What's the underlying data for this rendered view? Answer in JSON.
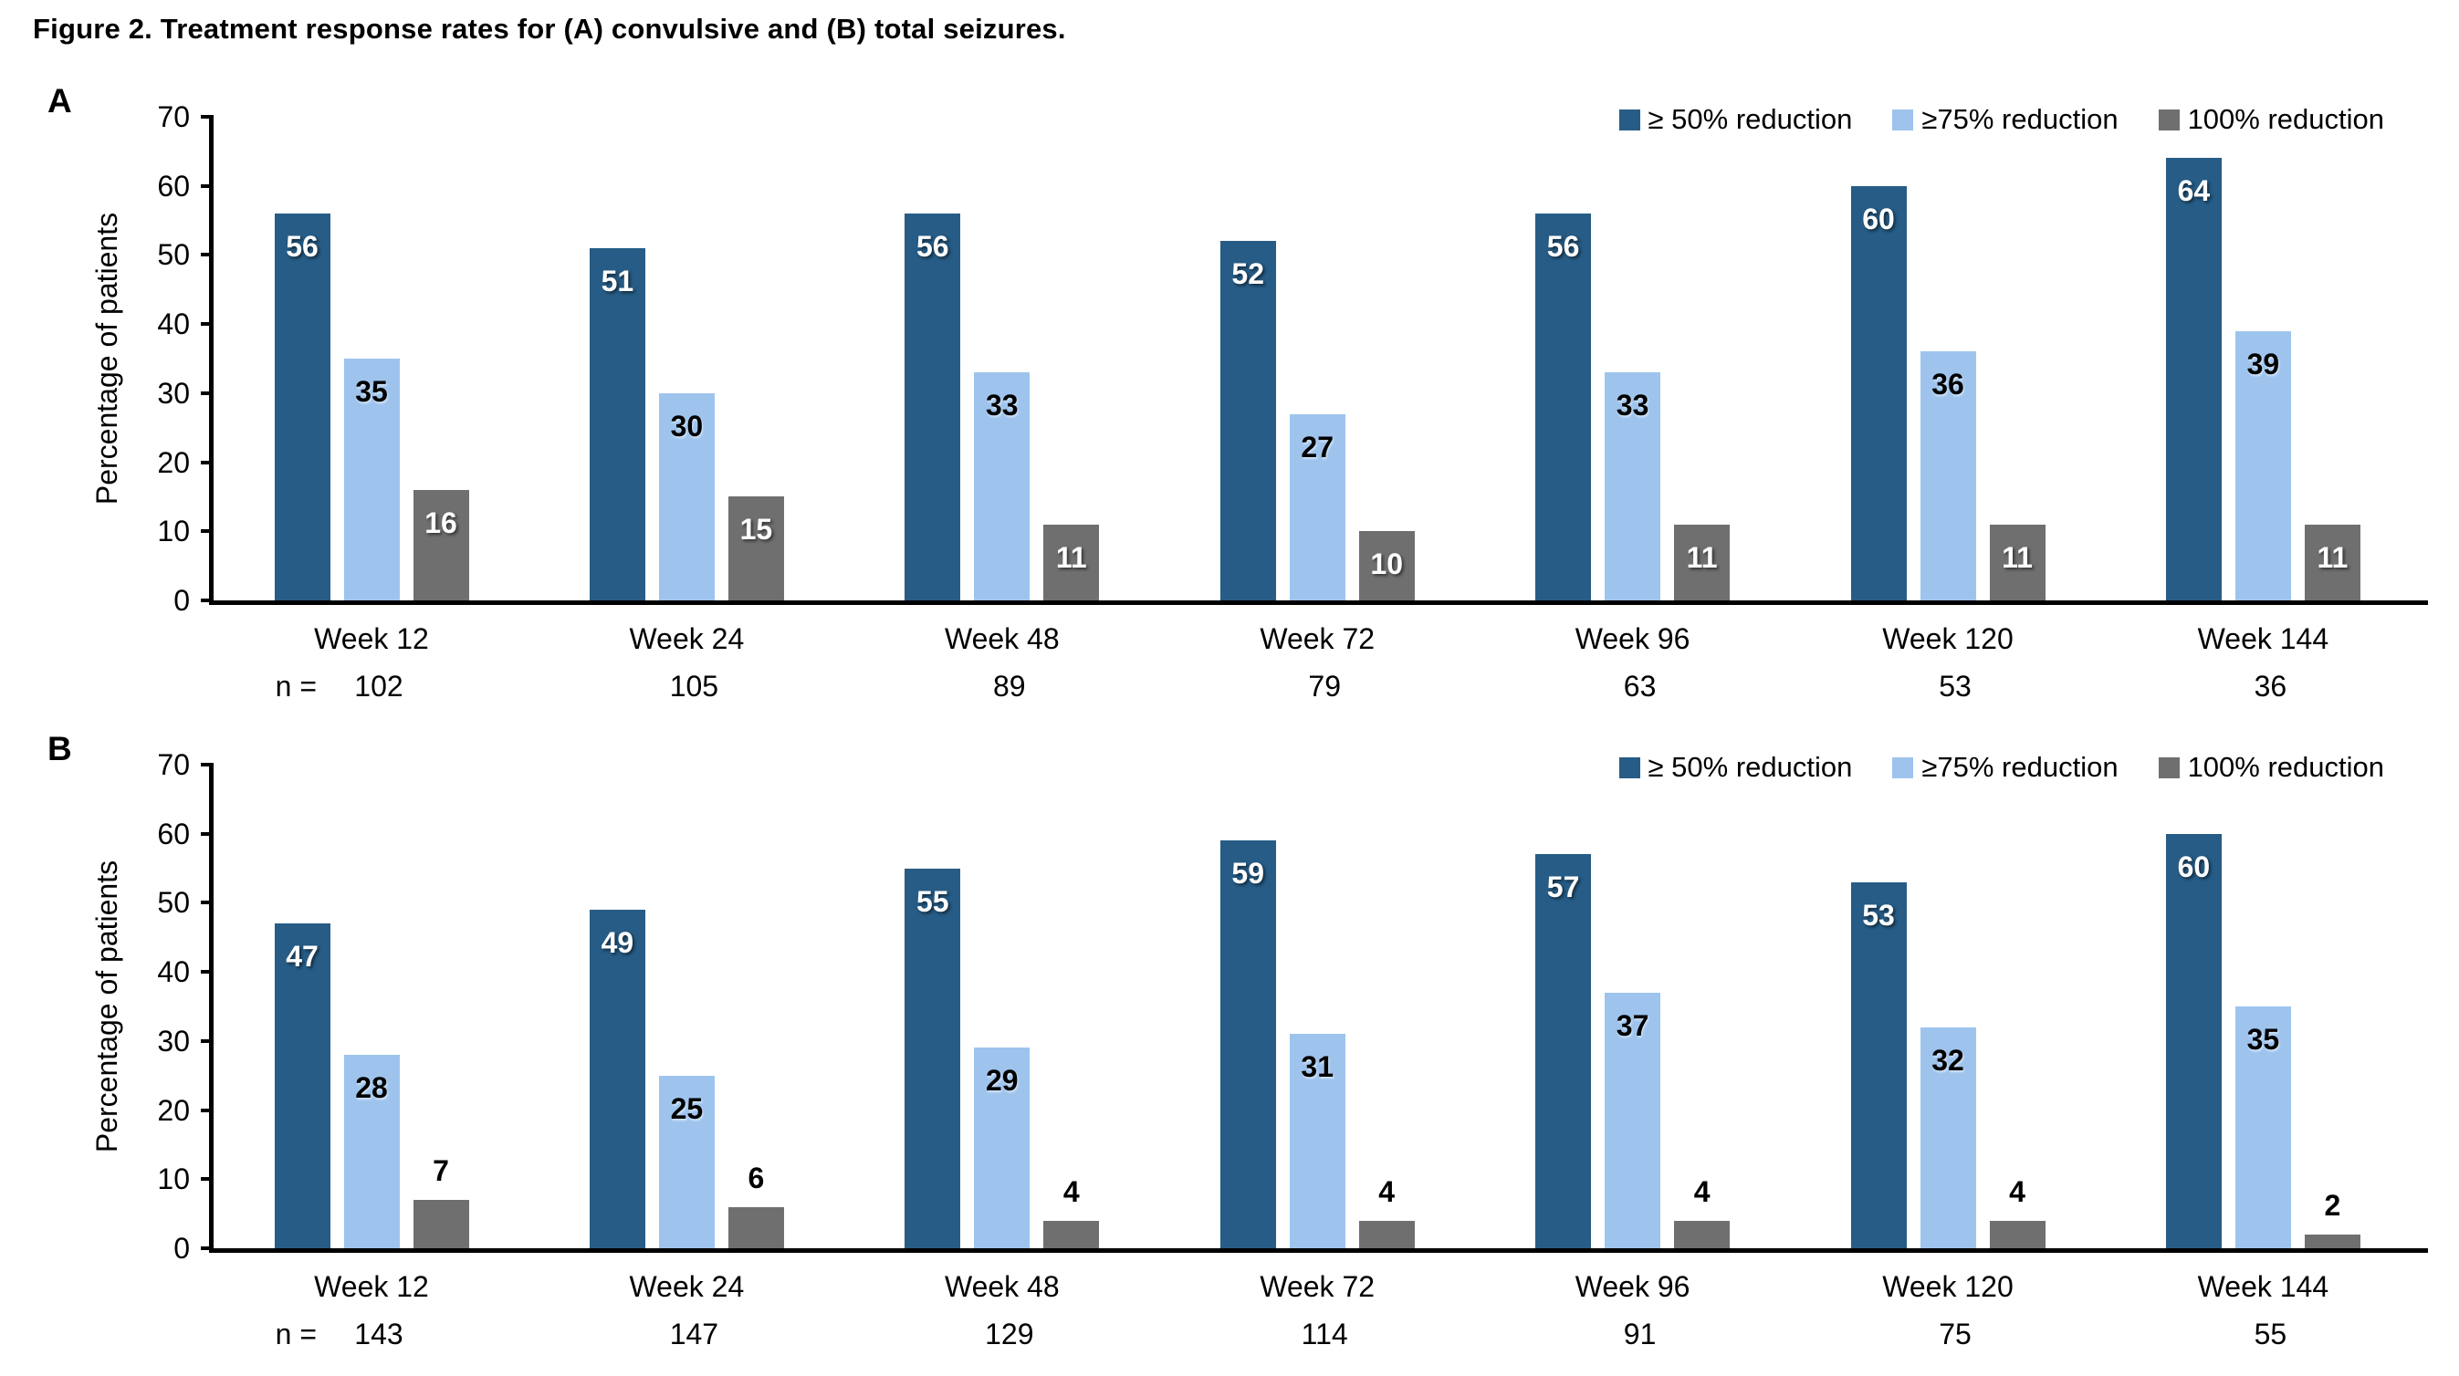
{
  "figure": {
    "title": "Figure 2. Treatment response rates for (A) convulsive and (B) total seizures."
  },
  "colors": {
    "dark_blue": "#265C86",
    "light_blue": "#9EC4EE",
    "gray": "#6F6F6F",
    "axis": "#000000",
    "background": "#FFFFFF"
  },
  "chart_data": [
    {
      "type": "bar",
      "panel": "A",
      "title": "Treatment response rates for convulsive seizures",
      "ylabel": "Percentage of patients",
      "xlabel": "",
      "ylim": [
        0,
        70
      ],
      "yticks": [
        0,
        10,
        20,
        30,
        40,
        50,
        60,
        70
      ],
      "grid": false,
      "legend_position": "top-right",
      "categories": [
        "Week 12",
        "Week 24",
        "Week 48",
        "Week 72",
        "Week 96",
        "Week 120",
        "Week 144"
      ],
      "n_label": "n =",
      "n_values": [
        102,
        105,
        89,
        79,
        63,
        53,
        36
      ],
      "series": [
        {
          "name": "≥ 50% reduction",
          "color": "#265C86",
          "values": [
            56,
            51,
            56,
            52,
            56,
            60,
            64
          ]
        },
        {
          "name": "≥75% reduction",
          "color": "#9EC4EE",
          "values": [
            35,
            30,
            33,
            27,
            33,
            36,
            39
          ]
        },
        {
          "name": "100% reduction",
          "color": "#6F6F6F",
          "values": [
            16,
            15,
            11,
            10,
            11,
            11,
            11
          ]
        }
      ]
    },
    {
      "type": "bar",
      "panel": "B",
      "title": "Treatment response rates for total seizures",
      "ylabel": "Percentage of patients",
      "xlabel": "",
      "ylim": [
        0,
        70
      ],
      "yticks": [
        0,
        10,
        20,
        30,
        40,
        50,
        60,
        70
      ],
      "grid": false,
      "legend_position": "top-right",
      "categories": [
        "Week 12",
        "Week 24",
        "Week 48",
        "Week 72",
        "Week 96",
        "Week 120",
        "Week 144"
      ],
      "n_label": "n =",
      "n_values": [
        143,
        147,
        129,
        114,
        91,
        75,
        55
      ],
      "series": [
        {
          "name": "≥ 50% reduction",
          "color": "#265C86",
          "values": [
            47,
            49,
            55,
            59,
            57,
            53,
            60
          ]
        },
        {
          "name": "≥75% reduction",
          "color": "#9EC4EE",
          "values": [
            28,
            25,
            29,
            31,
            37,
            32,
            35
          ]
        },
        {
          "name": "100% reduction",
          "color": "#6F6F6F",
          "values": [
            7,
            6,
            4,
            4,
            4,
            4,
            2
          ]
        }
      ]
    }
  ]
}
